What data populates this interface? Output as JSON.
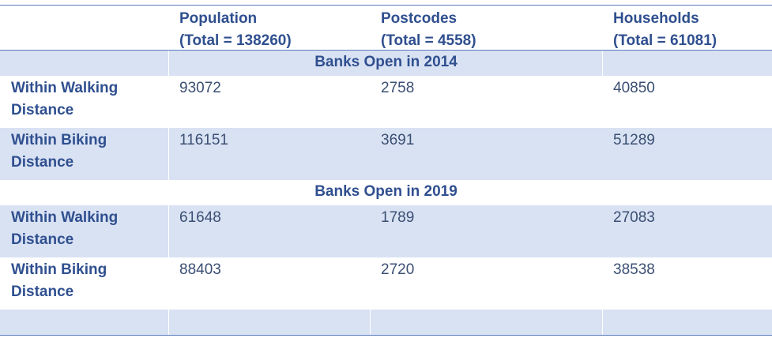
{
  "header": {
    "population": "Population",
    "population_total": "(Total = 138260)",
    "postcodes": "Postcodes",
    "postcodes_total": "(Total = 4558)",
    "households": "Households",
    "households_total": "(Total = 61081)"
  },
  "sections": [
    {
      "title": "Banks Open in 2014",
      "rows": [
        {
          "label_line1": "Within Walking",
          "label_line2": "Distance",
          "population": "93072",
          "postcodes": "2758",
          "households": "40850"
        },
        {
          "label_line1": "Within Biking",
          "label_line2": "Distance",
          "population": "116151",
          "postcodes": "3691",
          "households": "51289"
        }
      ]
    },
    {
      "title": "Banks Open in 2019",
      "rows": [
        {
          "label_line1": "Within Walking",
          "label_line2": "Distance",
          "population": "61648",
          "postcodes": "1789",
          "households": "27083"
        },
        {
          "label_line1": "Within Biking",
          "label_line2": "Distance",
          "population": "88403",
          "postcodes": "2720",
          "households": "38538"
        }
      ]
    }
  ]
}
